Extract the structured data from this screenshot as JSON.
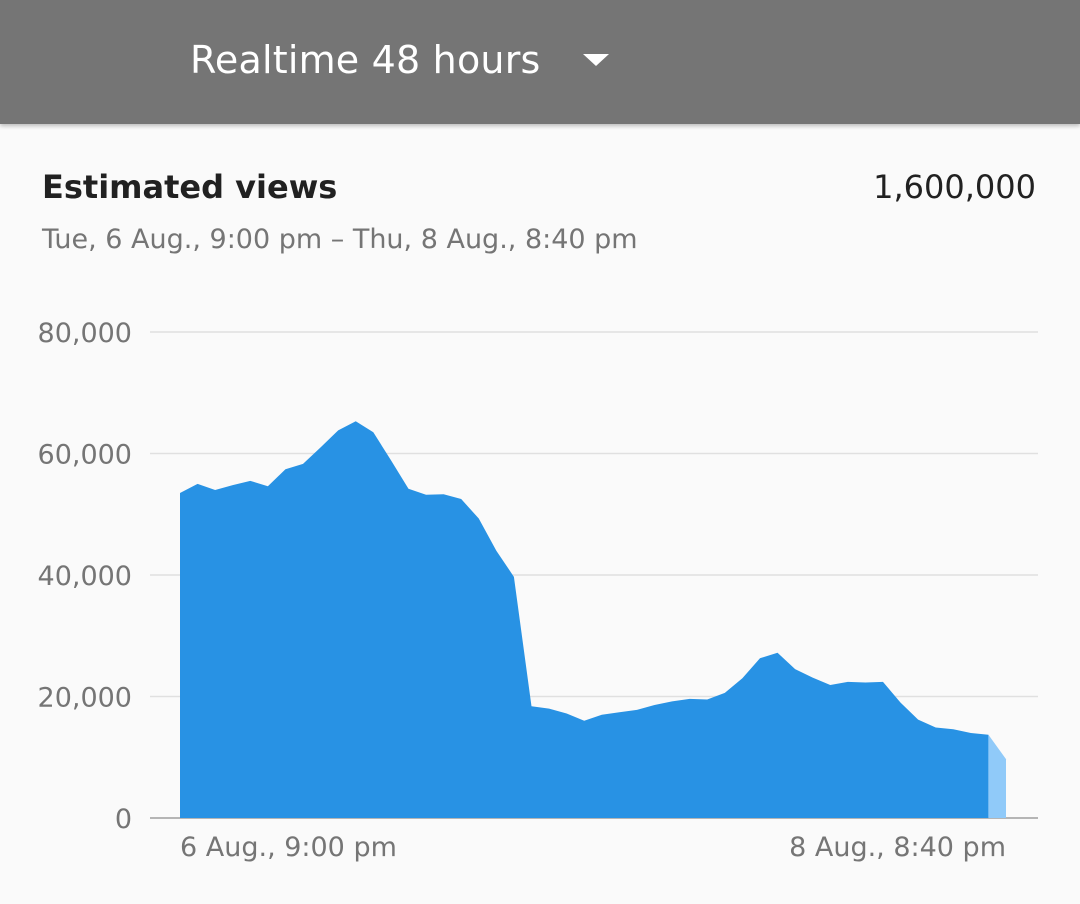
{
  "header": {
    "range_label": "Realtime 48 hours",
    "dropdown_icon": "chevron-down-icon"
  },
  "card": {
    "title": "Estimated views",
    "total": "1,600,000",
    "date_range": "Tue, 6 Aug., 9:00 pm – Thu, 8 Aug., 8:40 pm"
  },
  "colors": {
    "header_bg": "#757575",
    "area_fill": "#2892e4",
    "area_partial": "#90caf9",
    "gridline": "#e0e0e0"
  },
  "chart_data": {
    "type": "area",
    "y_ticks": [
      "80,000",
      "60,000",
      "40,000",
      "20,000",
      "0"
    ],
    "y_tick_values": [
      80000,
      60000,
      40000,
      20000,
      0
    ],
    "x_tick_labels": [
      "6 Aug., 9:00 pm",
      "8 Aug., 8:40 pm"
    ],
    "ylim": [
      0,
      80000
    ],
    "grid": true,
    "values": [
      53500,
      55000,
      54000,
      54800,
      55500,
      54600,
      57400,
      58300,
      61000,
      63800,
      65300,
      63500,
      58900,
      54200,
      53200,
      53300,
      52500,
      49300,
      44000,
      39700,
      18400,
      18000,
      17200,
      16000,
      17000,
      17400,
      17800,
      18600,
      19200,
      19600,
      19500,
      20600,
      23000,
      26300,
      27200,
      24500,
      23100,
      21900,
      22400,
      22300,
      22400,
      19000,
      16200,
      14900,
      14600,
      14000,
      13700,
      9700
    ]
  }
}
